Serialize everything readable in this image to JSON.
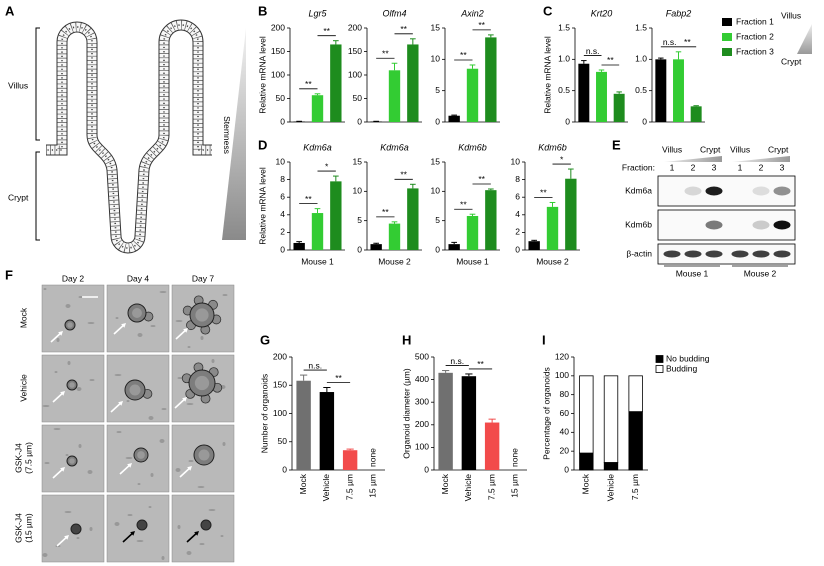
{
  "panel_a": {
    "letter": "A",
    "regions": [
      "Villus",
      "Crypt"
    ],
    "gradient": "Stemness"
  },
  "fraction_legend": {
    "series": [
      {
        "name": "Fraction 1",
        "color": "#000000"
      },
      {
        "name": "Fraction 2",
        "color": "#33cc33"
      },
      {
        "name": "Fraction 3",
        "color": "#1e8c1e"
      }
    ],
    "top": "Villus",
    "bottom": "Crypt"
  },
  "chart_data": [
    {
      "type": "bar",
      "panel": "B",
      "ylabel": "Relative mRNA level",
      "title": "Lgr5",
      "values": [
        1,
        57,
        165
      ],
      "errors": [
        0.5,
        3,
        8
      ],
      "significance": [
        "**",
        "**"
      ],
      "ylim": [
        0,
        200
      ],
      "yticks": [
        0,
        50,
        100,
        150,
        200
      ]
    },
    {
      "type": "bar",
      "title": "Olfm4",
      "values": [
        1,
        110,
        165
      ],
      "errors": [
        0.5,
        15,
        12
      ],
      "significance": [
        "**",
        "**"
      ],
      "ylim": [
        0,
        200
      ],
      "yticks": [
        0,
        50,
        100,
        150,
        200
      ]
    },
    {
      "type": "bar",
      "title": "Axin2",
      "values": [
        1,
        8.5,
        13.5
      ],
      "errors": [
        0.1,
        0.6,
        0.4
      ],
      "significance": [
        "**",
        "**"
      ],
      "ylim": [
        0,
        15
      ],
      "yticks": [
        0,
        5,
        10,
        15
      ]
    },
    {
      "type": "bar",
      "panel": "C",
      "ylabel": "Relative mRNA level",
      "title": "Krt20",
      "values": [
        0.93,
        0.8,
        0.45
      ],
      "errors": [
        0.05,
        0.03,
        0.03
      ],
      "significance": [
        "n.s.",
        "**"
      ],
      "ylim": [
        0,
        1.5
      ],
      "yticks": [
        0,
        0.5,
        {
          "value": 1,
          "label": "1.0"
        },
        1.5
      ]
    },
    {
      "type": "bar",
      "title": "Fabp2",
      "values": [
        1,
        1,
        0.25
      ],
      "errors": [
        0.02,
        0.12,
        0.01
      ],
      "significance": [
        "n.s.",
        "**"
      ],
      "ylim": [
        0,
        1.5
      ],
      "yticks": [
        0,
        0.5,
        {
          "value": 1,
          "label": "1.0"
        },
        1.5
      ]
    },
    {
      "type": "bar",
      "panel": "D",
      "ylabel": "Relative mRNA level",
      "title": "Kdm6a",
      "xlabel": "Mouse 1",
      "values": [
        0.8,
        4.2,
        7.8
      ],
      "errors": [
        0.15,
        0.5,
        0.6
      ],
      "significance": [
        "**",
        "*"
      ],
      "ylim": [
        0,
        10
      ],
      "yticks": [
        0,
        2,
        4,
        6,
        8,
        10
      ]
    },
    {
      "type": "bar",
      "title": "Kdm6a",
      "xlabel": "Mouse 2",
      "values": [
        1,
        4.5,
        10.5
      ],
      "errors": [
        0.15,
        0.3,
        0.7
      ],
      "significance": [
        "**",
        "**"
      ],
      "ylim": [
        0,
        15
      ],
      "yticks": [
        0,
        5,
        10,
        15
      ]
    },
    {
      "type": "bar",
      "title": "Kdm6b",
      "xlabel": "Mouse 1",
      "values": [
        1,
        5.8,
        10.2
      ],
      "errors": [
        0.3,
        0.3,
        0.2
      ],
      "significance": [
        "**",
        "**"
      ],
      "ylim": [
        0,
        15
      ],
      "yticks": [
        0,
        5,
        10,
        15
      ]
    },
    {
      "type": "bar",
      "title": "Kdm6b",
      "xlabel": "Mouse 2",
      "values": [
        1,
        4.9,
        8.1
      ],
      "errors": [
        0.1,
        0.5,
        1.1
      ],
      "significance": [
        "**",
        "*"
      ],
      "ylim": [
        0,
        10
      ],
      "yticks": [
        0,
        2,
        4,
        6,
        8,
        10
      ]
    },
    {
      "type": "bar",
      "panel": "G",
      "ylabel": "Number of organoids",
      "categories": [
        "Mock",
        "Vehicle",
        "7.5 µm",
        "15 µm"
      ],
      "values": [
        158,
        138,
        35,
        null
      ],
      "errors": [
        10,
        8,
        2,
        null
      ],
      "value_labels": [
        null,
        null,
        null,
        "none"
      ],
      "colors": [
        "#707070",
        "#000000",
        "#f24b4b",
        "#e03c3c"
      ],
      "significance": [
        "n.s.",
        "**"
      ],
      "ylim": [
        0,
        200
      ],
      "yticks": [
        0,
        50,
        100,
        150,
        200
      ]
    },
    {
      "type": "bar",
      "panel": "H",
      "ylabel": "Organoid diameter (µm)",
      "categories": [
        "Mock",
        "Vehicle",
        "7.5 µm",
        "15 µm"
      ],
      "values": [
        430,
        415,
        210,
        null
      ],
      "errors": [
        10,
        10,
        15,
        null
      ],
      "value_labels": [
        null,
        null,
        null,
        "none"
      ],
      "colors": [
        "#707070",
        "#000000",
        "#f24b4b",
        "#e03c3c"
      ],
      "significance": [
        "n.s.",
        "**"
      ],
      "ylim": [
        0,
        500
      ],
      "yticks": [
        0,
        100,
        200,
        300,
        400,
        500
      ]
    },
    {
      "type": "stacked_bar",
      "panel": "I",
      "ylabel": "Percentage of organoids",
      "categories": [
        "Mock",
        "Vehicle",
        "7.5 µm"
      ],
      "series": [
        {
          "name": "No budding",
          "color": "#000000",
          "values": [
            18,
            8,
            62
          ]
        },
        {
          "name": "Budding",
          "color": "#ffffff",
          "values": [
            82,
            92,
            38
          ]
        }
      ],
      "ylim": [
        0,
        120
      ],
      "yticks": [
        0,
        20,
        40,
        60,
        80,
        100,
        120
      ]
    }
  ],
  "panel_e": {
    "letter": "E",
    "label": "Fraction:",
    "groups": [
      {
        "name": "Mouse 1",
        "from": "Villus",
        "to": "Crypt",
        "lanes": [
          "1",
          "2",
          "3"
        ]
      },
      {
        "name": "Mouse 2",
        "from": "Villus",
        "to": "Crypt",
        "lanes": [
          "1",
          "2",
          "3"
        ]
      }
    ],
    "rows": [
      "Kdm6a",
      "Kdm6b",
      "β-actin"
    ]
  },
  "panel_f": {
    "letter": "F",
    "columns": [
      "Day 2",
      "Day 4",
      "Day 7"
    ],
    "rows": [
      [
        "Mock"
      ],
      [
        "Vehicle"
      ],
      [
        "GSK-J4",
        "(7.5 µm)"
      ],
      [
        "GSK-J4",
        "(15 µm)"
      ]
    ]
  }
}
